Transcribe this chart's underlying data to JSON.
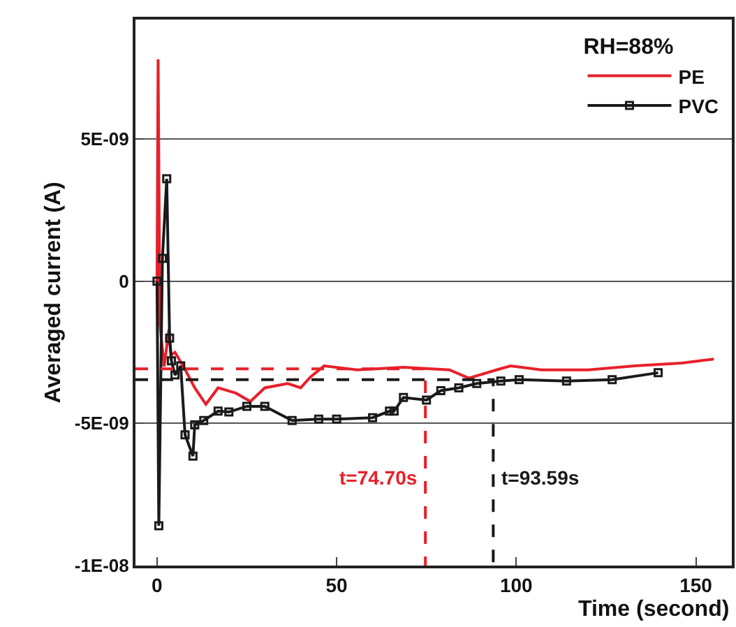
{
  "chart_data": {
    "type": "line",
    "xlabel": "Time (second)",
    "ylabel": "Averaged current (A)",
    "legend_title": "RH=88%",
    "xlim": [
      -6,
      160
    ],
    "xticks": [
      0,
      50,
      100,
      150
    ],
    "ylim": [
      -1e-08,
      9.2e-09
    ],
    "yticks": [
      {
        "value": -1e-08,
        "label": "-1E-08"
      },
      {
        "value": -5e-09,
        "label": "-5E-09"
      },
      0,
      {
        "value": 5e-09,
        "label": "5E-09"
      }
    ],
    "grid": "y",
    "legend": "top right",
    "series": [
      {
        "name": "PE",
        "color": "#e8202a",
        "marker": "none",
        "line_style": "solid",
        "x": [
          0,
          0.3,
          0.8,
          2,
          3.3,
          3.9,
          5,
          7.8,
          10.5,
          13.6,
          17,
          22,
          26,
          30,
          36.4,
          40,
          42.7,
          46.5,
          55.7,
          68.6,
          81.4,
          86.8,
          94.5,
          98.4,
          107,
          120,
          133,
          146,
          155
        ],
        "values": [
          0,
          7.8e-09,
          -1.5e-09,
          -3e-09,
          -1.7e-09,
          -2.6e-09,
          -2.5e-09,
          -3.1e-09,
          -3.75e-09,
          -4.33e-09,
          -3.75e-09,
          -3.94e-09,
          -4.23e-09,
          -3.75e-09,
          -3.6e-09,
          -3.75e-09,
          -3.37e-09,
          -2.98e-09,
          -3.12e-09,
          -3.03e-09,
          -3.12e-09,
          -3.41e-09,
          -3.12e-09,
          -2.98e-09,
          -3.12e-09,
          -3.12e-09,
          -2.98e-09,
          -2.88e-09,
          -2.74e-09
        ]
      },
      {
        "name": "PVC",
        "color": "#1a1a1a",
        "marker": "square",
        "line_style": "solid",
        "x": [
          0,
          0.5,
          1.5,
          2.7,
          3.5,
          4,
          5,
          6.6,
          7.8,
          10,
          10.5,
          13,
          17,
          20,
          25,
          30,
          37.6,
          45,
          50,
          60,
          64.7,
          66,
          68.6,
          75,
          79,
          84,
          89,
          95.7,
          100.8,
          114,
          126.7,
          139.5
        ],
        "values": [
          0,
          -8.6e-09,
          8e-10,
          3.6e-09,
          -2e-09,
          -2.8e-09,
          -3.3e-09,
          -2.98e-09,
          -5.4e-09,
          -6.15e-09,
          -5.05e-09,
          -4.9e-09,
          -4.57e-09,
          -4.6e-09,
          -4.4e-09,
          -4.4e-09,
          -4.9e-09,
          -4.85e-09,
          -4.85e-09,
          -4.8e-09,
          -4.57e-09,
          -4.57e-09,
          -4.09e-09,
          -4.18e-09,
          -3.85e-09,
          -3.75e-09,
          -3.6e-09,
          -3.51e-09,
          -3.46e-09,
          -3.51e-09,
          -3.46e-09,
          -3.22e-09
        ]
      },
      {
        "color": "#e8202a",
        "marker": "none",
        "line_style": "dashed",
        "x": [
          -6,
          74.7,
          74.7
        ],
        "values": [
          -3.08e-09,
          -3.08e-09,
          -1e-08
        ]
      },
      {
        "color": "#1a1a1a",
        "marker": "none",
        "line_style": "dashed",
        "x": [
          -6,
          93.59,
          93.59
        ],
        "values": [
          -3.46e-09,
          -3.46e-09,
          -1e-08
        ]
      }
    ],
    "annotations": [
      {
        "text": "t=74.70s",
        "x": 74.7,
        "y": -6.9e-09
      },
      {
        "text": "t=93.59s",
        "x": 93.59,
        "y": -6.9e-09
      }
    ]
  }
}
